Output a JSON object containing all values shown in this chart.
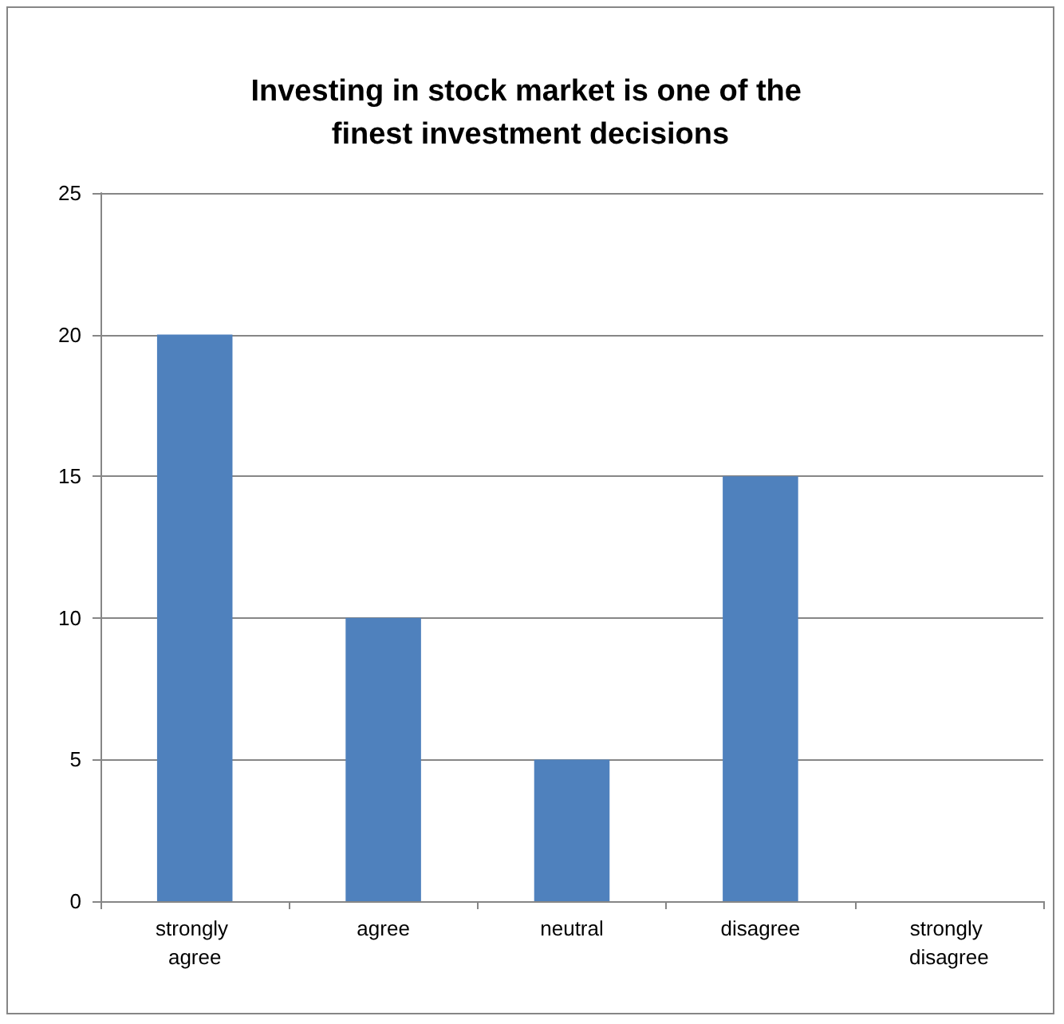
{
  "chart_data": {
    "type": "bar",
    "title": "Investing in stock market is one of the finest investment decisions",
    "categories": [
      "strongly agree",
      "agree",
      "neutral",
      "disagree",
      "strongly disagree"
    ],
    "values": [
      20,
      10,
      5,
      15,
      0
    ],
    "color": "#4f81bd",
    "ylim": [
      0,
      25
    ],
    "yticks": [
      0,
      5,
      10,
      15,
      20,
      25
    ],
    "grid": "y"
  }
}
